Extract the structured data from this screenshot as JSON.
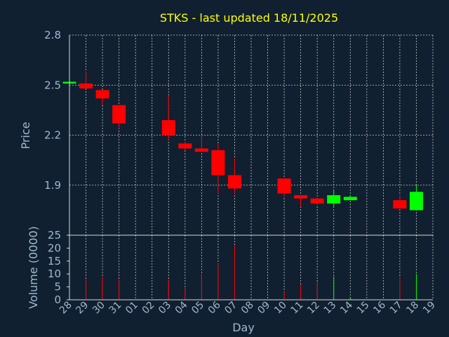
{
  "chart_data": {
    "type": "candlestick",
    "title": "STKS - last updated 18/11/2025",
    "xlabel": "Day",
    "price_panel": {
      "ylabel": "Price",
      "ylim": [
        1.6,
        2.8
      ],
      "yticks": [
        "1.9",
        "2.2",
        "2.5",
        "2.8"
      ],
      "grid": true
    },
    "volume_panel": {
      "ylabel": "Volume (0000)",
      "ylim": [
        0,
        25
      ],
      "yticks": [
        "0",
        "5",
        "10",
        "15",
        "20",
        "25"
      ]
    },
    "x_ticks": [
      "28",
      "29",
      "30",
      "31",
      "01",
      "02",
      "03",
      "04",
      "05",
      "06",
      "07",
      "08",
      "09",
      "10",
      "11",
      "12",
      "13",
      "14",
      "15",
      "16",
      "17",
      "18",
      "19"
    ],
    "candles": [
      {
        "day": "28",
        "open": 2.51,
        "high": 2.52,
        "low": 2.5,
        "close": 2.52,
        "volume": 0
      },
      {
        "day": "29",
        "open": 2.51,
        "high": 2.58,
        "low": 2.48,
        "close": 2.48,
        "volume": 8
      },
      {
        "day": "30",
        "open": 2.47,
        "high": 2.47,
        "low": 2.38,
        "close": 2.42,
        "volume": 9
      },
      {
        "day": "31",
        "open": 2.38,
        "high": 2.38,
        "low": 2.24,
        "close": 2.27,
        "volume": 8
      },
      {
        "day": "03",
        "open": 2.29,
        "high": 2.44,
        "low": 2.17,
        "close": 2.2,
        "volume": 8
      },
      {
        "day": "04",
        "open": 2.15,
        "high": 2.16,
        "low": 2.11,
        "close": 2.12,
        "volume": 5
      },
      {
        "day": "05",
        "open": 2.12,
        "high": 2.2,
        "low": 2.1,
        "close": 2.1,
        "volume": 10
      },
      {
        "day": "06",
        "open": 2.11,
        "high": 2.15,
        "low": 1.85,
        "close": 1.96,
        "volume": 14
      },
      {
        "day": "07",
        "open": 1.96,
        "high": 2.06,
        "low": 1.85,
        "close": 1.88,
        "volume": 21
      },
      {
        "day": "10",
        "open": 1.94,
        "high": 1.94,
        "low": 1.83,
        "close": 1.85,
        "volume": 3
      },
      {
        "day": "11",
        "open": 1.84,
        "high": 1.84,
        "low": 1.77,
        "close": 1.82,
        "volume": 6
      },
      {
        "day": "12",
        "open": 1.82,
        "high": 1.82,
        "low": 1.78,
        "close": 1.79,
        "volume": 7
      },
      {
        "day": "13",
        "open": 1.79,
        "high": 1.87,
        "low": 1.77,
        "close": 1.84,
        "volume": 9
      },
      {
        "day": "14",
        "open": 1.81,
        "high": 1.84,
        "low": 1.81,
        "close": 1.83,
        "volume": 1
      },
      {
        "day": "17",
        "open": 1.81,
        "high": 1.84,
        "low": 1.76,
        "close": 1.76,
        "volume": 9
      },
      {
        "day": "18",
        "open": 1.75,
        "high": 1.9,
        "low": 1.75,
        "close": 1.86,
        "volume": 10
      }
    ],
    "colors": {
      "background": "#102030",
      "up": "#00ff00",
      "down": "#ff0000",
      "text": "#a0b8d0",
      "title": "#ffff00",
      "axis": "#d8d8d8"
    }
  }
}
